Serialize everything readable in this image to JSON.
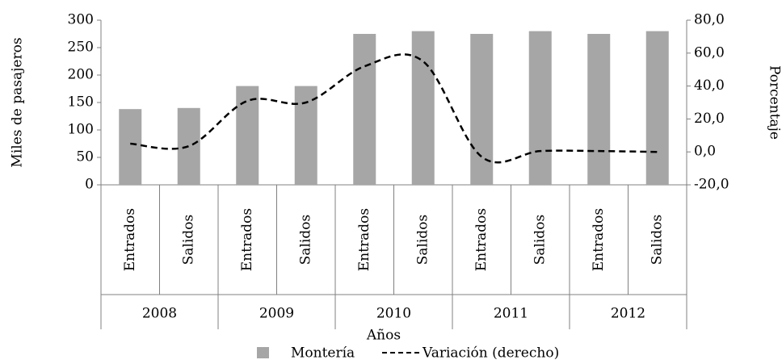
{
  "chart_data": {
    "type": "bar_line",
    "x_label": "Años",
    "y_label": "Miles de pasajeros",
    "y2_label": "Porcentaje",
    "categories": [
      "Entrados",
      "Salidos",
      "Entrados",
      "Salidos",
      "Entrados",
      "Salidos",
      "Entrados",
      "Salidos",
      "Entrados",
      "Salidos"
    ],
    "groups": [
      "2008",
      "2009",
      "2010",
      "2011",
      "2012"
    ],
    "series": [
      {
        "name": "Montería",
        "type": "bar",
        "color": "#a6a6a6",
        "values": [
          138,
          140,
          180,
          180,
          275,
          280,
          275,
          280,
          275,
          280
        ]
      },
      {
        "name": "Variación (derecho)",
        "type": "line",
        "color": "#000000",
        "axis": "y2",
        "values": [
          5,
          3.5,
          31,
          30,
          52,
          55,
          -3,
          0.5,
          0.5,
          0
        ]
      }
    ],
    "ylim": [
      0,
      300
    ],
    "yticks": [
      0,
      50,
      100,
      150,
      200,
      250,
      300
    ],
    "y2lim": [
      -20,
      80
    ],
    "y2ticks": [
      {
        "value": -20,
        "label": "-20,0"
      },
      {
        "value": 0,
        "label": "0,0"
      },
      {
        "value": 20,
        "label": "20,0"
      },
      {
        "value": 40,
        "label": "40,0"
      },
      {
        "value": 60,
        "label": "60,0"
      },
      {
        "value": 80,
        "label": "80,0"
      }
    ]
  }
}
